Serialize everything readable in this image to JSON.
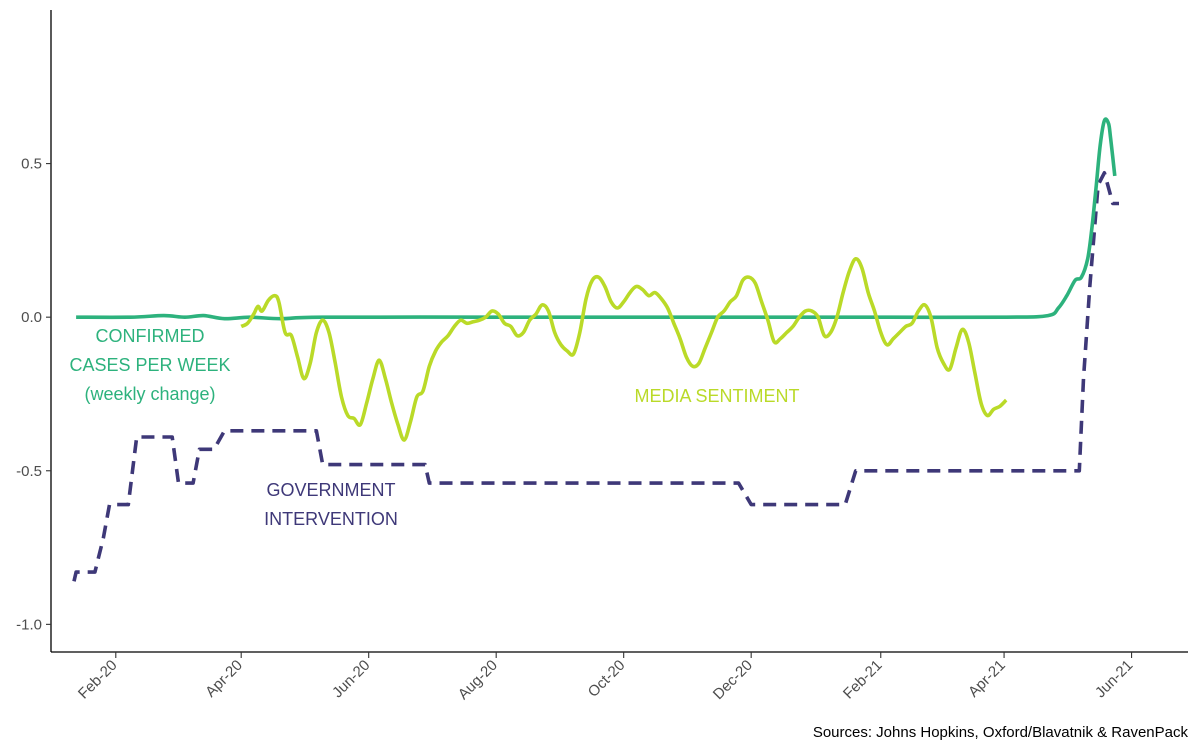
{
  "chart_data": {
    "type": "line",
    "title": "",
    "xlabel": "",
    "ylabel": "",
    "x_ticks": [
      "Feb-20",
      "Apr-20",
      "Jun-20",
      "Aug-20",
      "Oct-20",
      "Dec-20",
      "Feb-21",
      "Apr-21",
      "Jun-21"
    ],
    "x_tick_dates": [
      "2020-02-01",
      "2020-04-01",
      "2020-06-01",
      "2020-08-01",
      "2020-10-01",
      "2020-12-01",
      "2021-02-01",
      "2021-04-01",
      "2021-06-01"
    ],
    "y_ticks": [
      0.5,
      0.0,
      -0.5,
      -1.0
    ],
    "y_tick_labels": [
      "0.5",
      "0.0",
      "-0.5",
      "-1.0"
    ],
    "xlim": [
      "2020-01-01",
      "2021-06-28"
    ],
    "ylim": [
      -1.09,
      1.0
    ],
    "grid": false,
    "source": "Sources: Johns Hopkins, Oxford/Blavatnik & RavenPack",
    "series": [
      {
        "key": "cases",
        "label_lines": [
          "CONFIRMED",
          "CASES PER WEEK",
          "(weekly change)"
        ],
        "color": "#2db27d",
        "style": "solid",
        "points": [
          [
            "2020-01-13",
            0.0
          ],
          [
            "2020-02-08",
            0.0
          ],
          [
            "2020-02-24",
            0.005
          ],
          [
            "2020-03-05",
            0.0
          ],
          [
            "2020-03-14",
            0.005
          ],
          [
            "2020-03-24",
            -0.005
          ],
          [
            "2020-04-05",
            0.0
          ],
          [
            "2020-04-20",
            -0.005
          ],
          [
            "2020-05-10",
            0.0
          ],
          [
            "2020-08-01",
            0.0
          ],
          [
            "2020-10-01",
            0.0
          ],
          [
            "2020-12-01",
            0.0
          ],
          [
            "2021-01-01",
            0.0
          ],
          [
            "2021-02-01",
            0.0
          ],
          [
            "2021-04-01",
            0.0
          ],
          [
            "2021-04-22",
            0.005
          ],
          [
            "2021-04-27",
            0.03
          ],
          [
            "2021-05-01",
            0.07
          ],
          [
            "2021-05-05",
            0.12
          ],
          [
            "2021-05-08",
            0.13
          ],
          [
            "2021-05-11",
            0.19
          ],
          [
            "2021-05-13",
            0.29
          ],
          [
            "2021-05-15",
            0.42
          ],
          [
            "2021-05-17",
            0.56
          ],
          [
            "2021-05-19",
            0.64
          ],
          [
            "2021-05-21",
            0.63
          ],
          [
            "2021-05-22",
            0.58
          ],
          [
            "2021-05-24",
            0.46
          ]
        ]
      },
      {
        "key": "media",
        "label_lines": [
          "MEDIA SENTIMENT"
        ],
        "color": "#bada28",
        "style": "solid",
        "points": [
          [
            "2020-04-01",
            -0.03
          ],
          [
            "2020-04-04",
            -0.02
          ],
          [
            "2020-04-07",
            0.01
          ],
          [
            "2020-04-09",
            0.035
          ],
          [
            "2020-04-11",
            0.02
          ],
          [
            "2020-04-14",
            0.055
          ],
          [
            "2020-04-17",
            0.07
          ],
          [
            "2020-04-19",
            0.05
          ],
          [
            "2020-04-22",
            -0.05
          ],
          [
            "2020-04-25",
            -0.06
          ],
          [
            "2020-04-28",
            -0.13
          ],
          [
            "2020-05-01",
            -0.2
          ],
          [
            "2020-05-04",
            -0.15
          ],
          [
            "2020-05-07",
            -0.05
          ],
          [
            "2020-05-10",
            -0.01
          ],
          [
            "2020-05-13",
            -0.05
          ],
          [
            "2020-05-16",
            -0.15
          ],
          [
            "2020-05-19",
            -0.26
          ],
          [
            "2020-05-22",
            -0.32
          ],
          [
            "2020-05-25",
            -0.33
          ],
          [
            "2020-05-28",
            -0.35
          ],
          [
            "2020-05-31",
            -0.28
          ],
          [
            "2020-06-03",
            -0.2
          ],
          [
            "2020-06-06",
            -0.14
          ],
          [
            "2020-06-09",
            -0.2
          ],
          [
            "2020-06-12",
            -0.28
          ],
          [
            "2020-06-15",
            -0.35
          ],
          [
            "2020-06-18",
            -0.4
          ],
          [
            "2020-06-21",
            -0.34
          ],
          [
            "2020-06-24",
            -0.26
          ],
          [
            "2020-06-27",
            -0.24
          ],
          [
            "2020-06-30",
            -0.16
          ],
          [
            "2020-07-03",
            -0.11
          ],
          [
            "2020-07-06",
            -0.08
          ],
          [
            "2020-07-09",
            -0.06
          ],
          [
            "2020-07-12",
            -0.03
          ],
          [
            "2020-07-15",
            -0.01
          ],
          [
            "2020-07-18",
            -0.02
          ],
          [
            "2020-07-21",
            -0.015
          ],
          [
            "2020-07-24",
            -0.01
          ],
          [
            "2020-07-27",
            0.0
          ],
          [
            "2020-07-30",
            0.02
          ],
          [
            "2020-08-02",
            0.01
          ],
          [
            "2020-08-05",
            -0.02
          ],
          [
            "2020-08-08",
            -0.03
          ],
          [
            "2020-08-11",
            -0.06
          ],
          [
            "2020-08-14",
            -0.05
          ],
          [
            "2020-08-17",
            -0.01
          ],
          [
            "2020-08-20",
            0.01
          ],
          [
            "2020-08-23",
            0.04
          ],
          [
            "2020-08-26",
            0.02
          ],
          [
            "2020-08-29",
            -0.05
          ],
          [
            "2020-09-01",
            -0.09
          ],
          [
            "2020-09-04",
            -0.11
          ],
          [
            "2020-09-07",
            -0.12
          ],
          [
            "2020-09-10",
            -0.05
          ],
          [
            "2020-09-13",
            0.06
          ],
          [
            "2020-09-16",
            0.12
          ],
          [
            "2020-09-19",
            0.13
          ],
          [
            "2020-09-22",
            0.1
          ],
          [
            "2020-09-25",
            0.05
          ],
          [
            "2020-09-28",
            0.03
          ],
          [
            "2020-10-01",
            0.05
          ],
          [
            "2020-10-04",
            0.08
          ],
          [
            "2020-10-07",
            0.1
          ],
          [
            "2020-10-10",
            0.09
          ],
          [
            "2020-10-13",
            0.07
          ],
          [
            "2020-10-16",
            0.08
          ],
          [
            "2020-10-19",
            0.06
          ],
          [
            "2020-10-22",
            0.03
          ],
          [
            "2020-10-25",
            -0.02
          ],
          [
            "2020-10-28",
            -0.07
          ],
          [
            "2020-10-31",
            -0.13
          ],
          [
            "2020-11-03",
            -0.16
          ],
          [
            "2020-11-06",
            -0.15
          ],
          [
            "2020-11-09",
            -0.1
          ],
          [
            "2020-11-12",
            -0.05
          ],
          [
            "2020-11-15",
            0.0
          ],
          [
            "2020-11-18",
            0.02
          ],
          [
            "2020-11-21",
            0.05
          ],
          [
            "2020-11-24",
            0.07
          ],
          [
            "2020-11-27",
            0.12
          ],
          [
            "2020-11-30",
            0.13
          ],
          [
            "2020-12-03",
            0.11
          ],
          [
            "2020-12-06",
            0.05
          ],
          [
            "2020-12-09",
            -0.01
          ],
          [
            "2020-12-12",
            -0.08
          ],
          [
            "2020-12-15",
            -0.07
          ],
          [
            "2020-12-18",
            -0.05
          ],
          [
            "2020-12-21",
            -0.03
          ],
          [
            "2020-12-24",
            0.0
          ],
          [
            "2020-12-27",
            0.02
          ],
          [
            "2020-12-30",
            0.02
          ],
          [
            "2021-01-02",
            0.0
          ],
          [
            "2021-01-05",
            -0.06
          ],
          [
            "2021-01-08",
            -0.05
          ],
          [
            "2021-01-11",
            0.0
          ],
          [
            "2021-01-14",
            0.08
          ],
          [
            "2021-01-17",
            0.15
          ],
          [
            "2021-01-20",
            0.19
          ],
          [
            "2021-01-23",
            0.16
          ],
          [
            "2021-01-26",
            0.08
          ],
          [
            "2021-01-29",
            0.02
          ],
          [
            "2021-02-01",
            -0.05
          ],
          [
            "2021-02-04",
            -0.09
          ],
          [
            "2021-02-07",
            -0.07
          ],
          [
            "2021-02-10",
            -0.05
          ],
          [
            "2021-02-13",
            -0.03
          ],
          [
            "2021-02-16",
            -0.02
          ],
          [
            "2021-02-19",
            0.02
          ],
          [
            "2021-02-22",
            0.04
          ],
          [
            "2021-02-25",
            0.0
          ],
          [
            "2021-02-28",
            -0.1
          ],
          [
            "2021-03-03",
            -0.15
          ],
          [
            "2021-03-06",
            -0.17
          ],
          [
            "2021-03-09",
            -0.1
          ],
          [
            "2021-03-12",
            -0.04
          ],
          [
            "2021-03-15",
            -0.08
          ],
          [
            "2021-03-18",
            -0.18
          ],
          [
            "2021-03-21",
            -0.28
          ],
          [
            "2021-03-24",
            -0.32
          ],
          [
            "2021-03-27",
            -0.3
          ],
          [
            "2021-03-30",
            -0.29
          ],
          [
            "2021-04-02",
            -0.27
          ]
        ]
      },
      {
        "key": "gov",
        "label_lines": [
          "GOVERNMENT",
          "INTERVENTION"
        ],
        "color": "#3e3878",
        "style": "dashed",
        "points": [
          [
            "2020-01-12",
            -0.86
          ],
          [
            "2020-01-13",
            -0.83
          ],
          [
            "2020-01-22",
            -0.83
          ],
          [
            "2020-01-26",
            -0.72
          ],
          [
            "2020-01-29",
            -0.61
          ],
          [
            "2020-02-07",
            -0.61
          ],
          [
            "2020-02-09",
            -0.5
          ],
          [
            "2020-02-11",
            -0.39
          ],
          [
            "2020-02-28",
            -0.39
          ],
          [
            "2020-03-02",
            -0.54
          ],
          [
            "2020-03-09",
            -0.54
          ],
          [
            "2020-03-12",
            -0.43
          ],
          [
            "2020-03-19",
            -0.43
          ],
          [
            "2020-03-24",
            -0.37
          ],
          [
            "2020-05-07",
            -0.37
          ],
          [
            "2020-05-10",
            -0.48
          ],
          [
            "2020-06-28",
            -0.48
          ],
          [
            "2020-06-30",
            -0.54
          ],
          [
            "2020-11-25",
            -0.54
          ],
          [
            "2020-12-01",
            -0.61
          ],
          [
            "2021-01-15",
            -0.61
          ],
          [
            "2021-01-20",
            -0.5
          ],
          [
            "2021-05-07",
            -0.5
          ],
          [
            "2021-05-09",
            -0.2
          ],
          [
            "2021-05-12",
            0.1
          ],
          [
            "2021-05-16",
            0.43
          ],
          [
            "2021-05-19",
            0.47
          ],
          [
            "2021-05-23",
            0.37
          ],
          [
            "2021-05-26",
            0.37
          ]
        ]
      }
    ]
  }
}
